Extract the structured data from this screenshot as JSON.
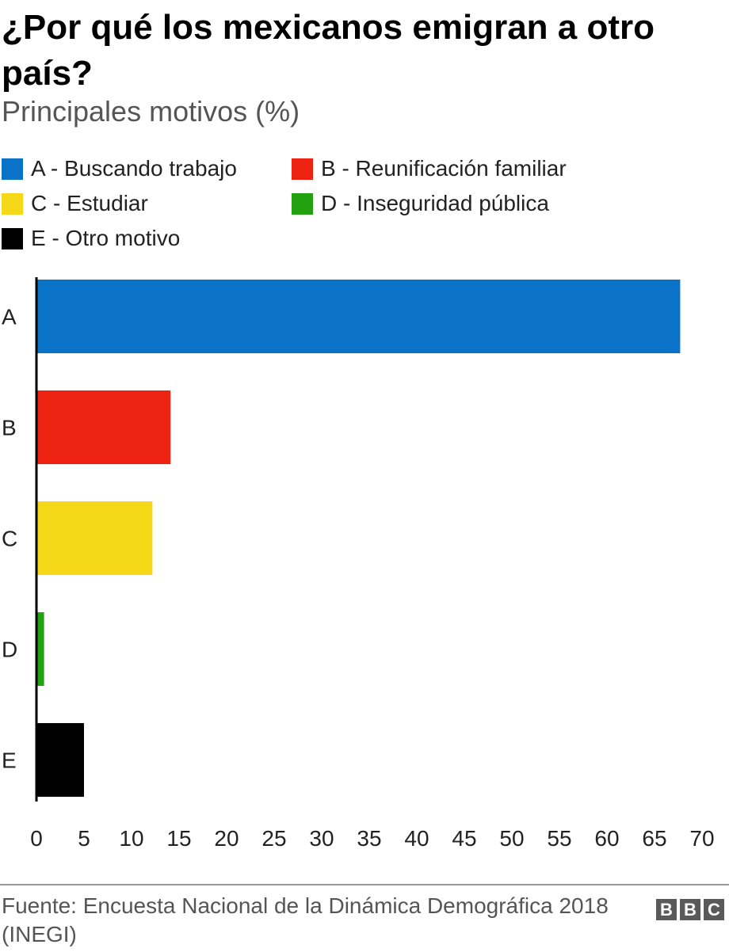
{
  "title": "¿Por qué los mexicanos emigran a otro país?",
  "subtitle": "Principales motivos (%)",
  "legend": [
    {
      "label": "A - Buscando trabajo",
      "color": "#0a72c7"
    },
    {
      "label": "B - Reunificación familiar",
      "color": "#ee2211"
    },
    {
      "label": "C - Estudiar",
      "color": "#f5d918"
    },
    {
      "label": "D - Inseguridad pública",
      "color": "#22a111"
    },
    {
      "label": "E - Otro motivo",
      "color": "#000000"
    }
  ],
  "chart_data": {
    "type": "bar",
    "orientation": "horizontal",
    "categories": [
      "A",
      "B",
      "C",
      "D",
      "E"
    ],
    "values": [
      67.7,
      14.1,
      12.2,
      0.8,
      5.0
    ],
    "colors": [
      "#0a72c7",
      "#ee2211",
      "#f5d918",
      "#22a111",
      "#000000"
    ],
    "xlim": [
      0,
      70
    ],
    "xticks": [
      "0",
      "5",
      "10",
      "15",
      "20",
      "25",
      "30",
      "35",
      "40",
      "45",
      "50",
      "55",
      "60",
      "65",
      "70"
    ],
    "grid": false,
    "legend_position": "top"
  },
  "source": "Fuente: Encuesta Nacional de la Dinámica Demográfica 2018 (INEGI)",
  "logo": {
    "letters": [
      "B",
      "B",
      "C"
    ],
    "color": "#5a5a5a"
  }
}
